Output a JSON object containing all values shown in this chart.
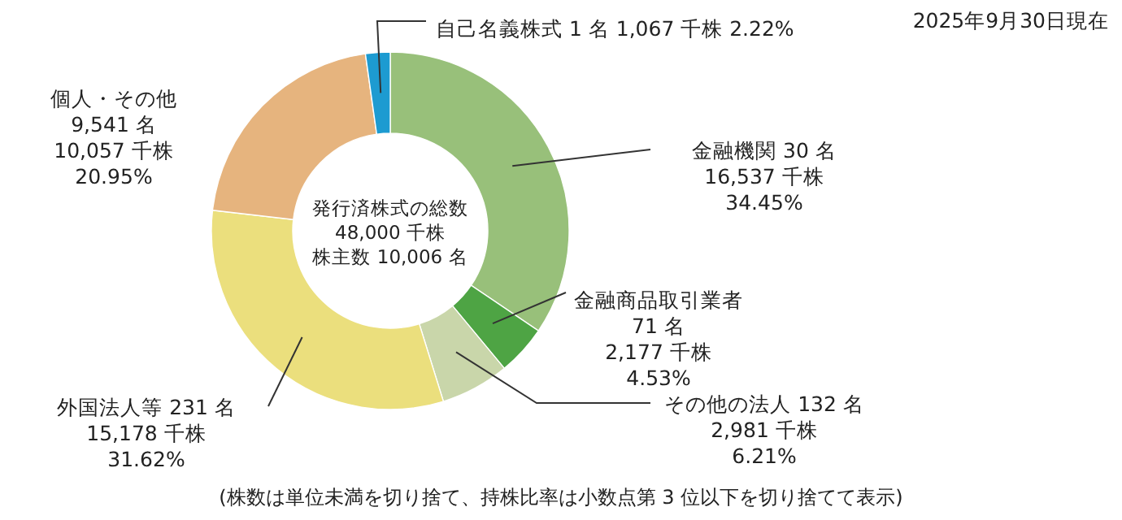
{
  "chart_data": {
    "type": "donut",
    "title": "2025年9月30日現在",
    "categories": [
      "金融機関",
      "金融商品取引業者",
      "その他の法人",
      "外国法人等",
      "個人・その他",
      "自己名義株式"
    ],
    "values": [
      34.45,
      4.53,
      6.21,
      31.62,
      20.95,
      2.22
    ],
    "value_labels": [
      "30 名\n16,537 千株\n34.45%",
      "71 名\n2,177 千株\n4.53%",
      "132 名\n2,981 千株\n6.21%",
      "231 名\n15,178 千株\n31.62%",
      "9,541 名\n10,057 千株\n20.95%",
      "1 名\n1,067 千株\n2.22%"
    ],
    "colors": [
      "#98c07a",
      "#4ea444",
      "#c9d6aa",
      "#ebdf7d",
      "#e6b47e",
      "#1d9bd1"
    ],
    "annotations": [
      "発行済株式の総数",
      "48,000 千株",
      "株主数 10,006 名",
      "(株数は単位未満を切り捨て、持株比率は小数点第 3 位以下を切り捨てて表示)"
    ]
  }
}
